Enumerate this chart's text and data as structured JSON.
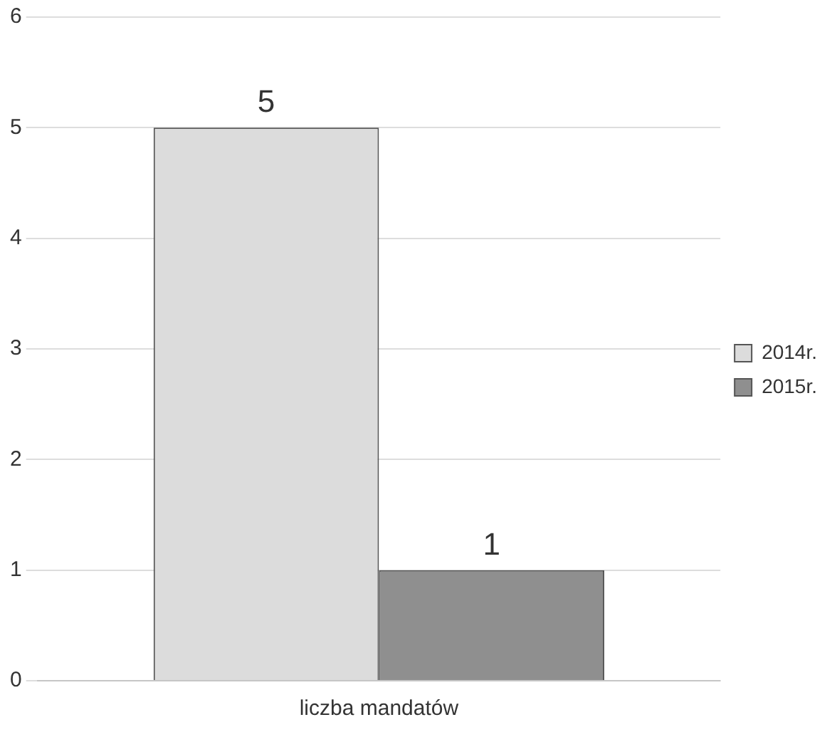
{
  "chart_data": {
    "type": "bar",
    "categories": [
      "liczba mandatów"
    ],
    "series": [
      {
        "name": "2014r.",
        "color": "#dcdcdc",
        "values": [
          5
        ]
      },
      {
        "name": "2015r.",
        "color": "#8f8f8f",
        "values": [
          1
        ]
      }
    ],
    "ylim": [
      0,
      6
    ],
    "yticks": [
      0,
      1,
      2,
      3,
      4,
      5,
      6
    ],
    "grid": "y",
    "legend": "right",
    "data_labels": true
  }
}
